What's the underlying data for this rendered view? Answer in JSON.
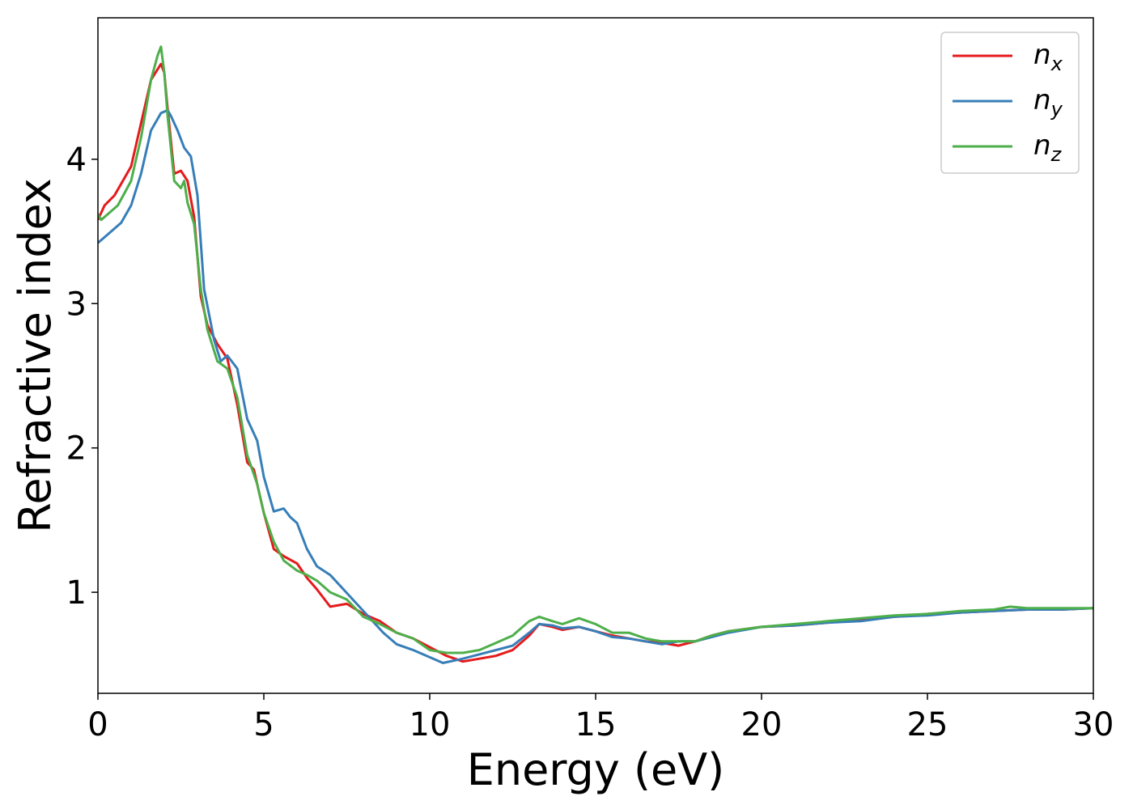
{
  "chart_data": {
    "type": "line",
    "xlabel": "Energy (eV)",
    "ylabel": "Refractive index",
    "xlim": [
      0,
      30
    ],
    "ylim": [
      0.3,
      4.98
    ],
    "xticks": [
      0,
      5,
      10,
      15,
      20,
      25,
      30
    ],
    "yticks": [
      1,
      2,
      3,
      4
    ],
    "grid": false,
    "legend_position": "top-right",
    "series": [
      {
        "name": "n_x",
        "label_main": "n",
        "label_sub": "x",
        "color": "#e41a1c",
        "x": [
          0,
          0.2,
          0.5,
          1.0,
          1.3,
          1.6,
          1.9,
          2.0,
          2.1,
          2.3,
          2.5,
          2.7,
          2.9,
          3.1,
          3.3,
          3.6,
          3.9,
          4.2,
          4.5,
          4.7,
          5.0,
          5.3,
          5.6,
          6.0,
          6.3,
          6.6,
          7.0,
          7.5,
          8.0,
          8.5,
          9.0,
          9.5,
          10.0,
          10.5,
          11.0,
          11.5,
          12.0,
          12.5,
          13.0,
          13.3,
          13.7,
          14.0,
          14.5,
          15.0,
          15.5,
          16.0,
          16.5,
          17.0,
          17.5,
          18.0,
          18.5,
          19.0,
          20.0,
          21.0,
          22.0,
          23.0,
          24.0,
          25.0,
          26.0,
          27.0,
          28.0,
          29.0,
          30.0
        ],
        "y": [
          3.58,
          3.68,
          3.75,
          3.95,
          4.25,
          4.55,
          4.66,
          4.6,
          4.35,
          3.9,
          3.92,
          3.85,
          3.6,
          3.05,
          2.85,
          2.72,
          2.62,
          2.3,
          1.9,
          1.85,
          1.55,
          1.3,
          1.25,
          1.2,
          1.1,
          1.02,
          0.9,
          0.92,
          0.85,
          0.8,
          0.72,
          0.68,
          0.62,
          0.56,
          0.52,
          0.54,
          0.56,
          0.6,
          0.7,
          0.78,
          0.76,
          0.74,
          0.76,
          0.73,
          0.7,
          0.68,
          0.66,
          0.65,
          0.63,
          0.66,
          0.7,
          0.73,
          0.76,
          0.77,
          0.79,
          0.81,
          0.83,
          0.85,
          0.86,
          0.87,
          0.88,
          0.88,
          0.89
        ]
      },
      {
        "name": "n_y",
        "label_main": "n",
        "label_sub": "y",
        "color": "#377eb8",
        "x": [
          0,
          0.3,
          0.7,
          1.0,
          1.3,
          1.6,
          1.9,
          2.1,
          2.2,
          2.4,
          2.6,
          2.8,
          3.0,
          3.2,
          3.5,
          3.7,
          3.9,
          4.2,
          4.5,
          4.8,
          5.0,
          5.3,
          5.6,
          5.8,
          6.0,
          6.3,
          6.6,
          7.0,
          7.4,
          7.8,
          8.2,
          8.6,
          9.0,
          9.5,
          10.0,
          10.4,
          11.0,
          11.5,
          12.0,
          12.5,
          13.0,
          13.3,
          13.7,
          14.0,
          14.5,
          15.0,
          15.5,
          16.0,
          16.5,
          17.0,
          17.5,
          18.0,
          18.5,
          19.0,
          20.0,
          21.0,
          22.0,
          23.0,
          24.0,
          25.0,
          26.0,
          27.0,
          28.0,
          29.0,
          30.0
        ],
        "y": [
          3.42,
          3.48,
          3.56,
          3.68,
          3.9,
          4.2,
          4.32,
          4.34,
          4.3,
          4.2,
          4.08,
          4.02,
          3.75,
          3.1,
          2.75,
          2.6,
          2.64,
          2.55,
          2.2,
          2.05,
          1.8,
          1.56,
          1.58,
          1.52,
          1.48,
          1.3,
          1.18,
          1.12,
          1.02,
          0.92,
          0.82,
          0.72,
          0.64,
          0.6,
          0.55,
          0.51,
          0.54,
          0.57,
          0.6,
          0.63,
          0.72,
          0.78,
          0.77,
          0.75,
          0.76,
          0.73,
          0.69,
          0.68,
          0.66,
          0.64,
          0.66,
          0.66,
          0.69,
          0.72,
          0.76,
          0.77,
          0.79,
          0.8,
          0.83,
          0.84,
          0.86,
          0.87,
          0.88,
          0.88,
          0.89
        ]
      },
      {
        "name": "n_z",
        "label_main": "n",
        "label_sub": "z",
        "color": "#4daf4a",
        "x": [
          0,
          0.1,
          0.3,
          0.6,
          1.0,
          1.3,
          1.6,
          1.8,
          1.9,
          2.0,
          2.1,
          2.3,
          2.5,
          2.6,
          2.7,
          2.9,
          3.1,
          3.3,
          3.6,
          3.9,
          4.2,
          4.5,
          4.8,
          5.0,
          5.3,
          5.6,
          6.0,
          6.3,
          6.6,
          7.0,
          7.5,
          8.0,
          8.5,
          9.0,
          9.5,
          10.0,
          10.5,
          11.0,
          11.5,
          12.0,
          12.5,
          13.0,
          13.3,
          13.7,
          14.0,
          14.5,
          15.0,
          15.5,
          16.0,
          16.5,
          17.0,
          17.5,
          18.0,
          18.5,
          19.0,
          20.0,
          21.0,
          22.0,
          23.0,
          24.0,
          25.0,
          26.0,
          27.0,
          27.5,
          28.0,
          29.0,
          30.0
        ],
        "y": [
          3.62,
          3.58,
          3.62,
          3.68,
          3.85,
          4.15,
          4.55,
          4.72,
          4.78,
          4.6,
          4.3,
          3.85,
          3.8,
          3.85,
          3.7,
          3.55,
          3.1,
          2.82,
          2.6,
          2.55,
          2.35,
          1.95,
          1.75,
          1.55,
          1.35,
          1.22,
          1.15,
          1.12,
          1.08,
          1.0,
          0.95,
          0.83,
          0.78,
          0.72,
          0.68,
          0.6,
          0.58,
          0.58,
          0.6,
          0.65,
          0.7,
          0.8,
          0.83,
          0.8,
          0.78,
          0.82,
          0.78,
          0.72,
          0.72,
          0.68,
          0.66,
          0.66,
          0.66,
          0.7,
          0.73,
          0.76,
          0.78,
          0.8,
          0.82,
          0.84,
          0.85,
          0.87,
          0.88,
          0.9,
          0.89,
          0.89,
          0.89
        ]
      }
    ]
  }
}
